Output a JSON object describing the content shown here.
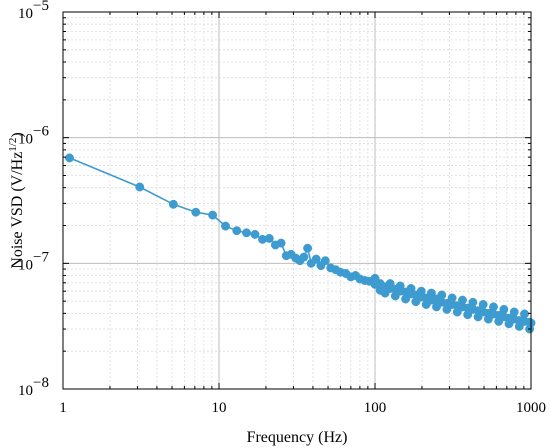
{
  "chart_data": {
    "type": "line",
    "title": "",
    "xlabel": "Frequency (Hz)",
    "ylabel_main": "Noise VSD (V/Hz",
    "ylabel_sup": "1/2",
    "ylabel_end": ")",
    "xscale": "log",
    "yscale": "log",
    "xlim": [
      1,
      1000
    ],
    "ylim": [
      1e-08,
      1e-05
    ],
    "grid": true,
    "legend": "none",
    "colors": {
      "series": "#3e9bd0",
      "major_grid": "#bdbdbd",
      "minor_grid": "#dcdcdc"
    },
    "x_ticks": [
      {
        "value": 1,
        "label": "1"
      },
      {
        "value": 10,
        "label": "10"
      },
      {
        "value": 100,
        "label": "100"
      },
      {
        "value": 1000,
        "label": "1000"
      }
    ],
    "y_ticks": [
      {
        "value": 1e-08,
        "base": "10",
        "exp": "−8"
      },
      {
        "value": 1e-07,
        "base": "10",
        "exp": "−7"
      },
      {
        "value": 1e-06,
        "base": "10",
        "exp": "−6"
      },
      {
        "value": 1e-05,
        "base": "10",
        "exp": "−5"
      }
    ],
    "series": [
      {
        "name": "",
        "x": [
          1.1,
          3.1,
          5.1,
          7.1,
          9.1,
          11,
          13,
          15,
          17,
          19,
          21,
          23,
          25,
          27,
          29,
          31,
          33,
          35,
          37,
          39,
          42,
          45,
          48,
          52,
          56,
          60,
          65,
          70,
          75,
          80,
          86,
          92,
          100,
          108,
          116,
          125,
          135,
          145,
          157,
          170,
          183,
          198,
          213,
          230,
          248,
          268,
          289,
          312,
          337,
          364,
          393,
          424,
          458,
          494,
          533,
          575,
          621,
          670,
          723,
          780,
          842,
          908,
          980,
          1000
        ],
        "y": [
          6.9e-07,
          4.05e-07,
          2.95e-07,
          2.55e-07,
          2.42e-07,
          1.98e-07,
          1.82e-07,
          1.75e-07,
          1.7e-07,
          1.55e-07,
          1.58e-07,
          1.4e-07,
          1.45e-07,
          1.15e-07,
          1.18e-07,
          1.1e-07,
          1.05e-07,
          1.12e-07,
          1.32e-07,
          1e-07,
          1.08e-07,
          9.6e-08,
          1.05e-07,
          9.2e-08,
          8.9e-08,
          8.5e-08,
          8.3e-08,
          7.8e-08,
          8e-08,
          7.5e-08,
          7.3e-08,
          7.2e-08,
          6.8e-08,
          6.9e-08,
          6.5e-08,
          6.3e-08,
          6.2e-08,
          6e-08,
          5.9e-08,
          5.7e-08,
          5.6e-08,
          5.4e-08,
          5.3e-08,
          5.1e-08,
          5.2e-08,
          4.9e-08,
          4.8e-08,
          4.7e-08,
          4.6e-08,
          4.5e-08,
          4.4e-08,
          4.3e-08,
          4.2e-08,
          4.1e-08,
          4e-08,
          3.95e-08,
          3.85e-08,
          3.75e-08,
          3.65e-08,
          3.6e-08,
          3.5e-08,
          3.45e-08,
          3.4e-08,
          3.35e-08
        ]
      },
      {
        "name": "",
        "x": [
          100,
          108,
          116,
          125,
          135,
          145,
          157,
          170,
          183,
          198,
          213,
          230,
          248,
          268,
          289,
          312,
          337,
          364,
          393,
          424,
          458,
          494,
          533,
          575,
          621,
          670,
          723,
          780,
          842,
          908,
          980
        ],
        "y": [
          7.6e-08,
          6.1e-08,
          5.8e-08,
          6.9e-08,
          5.5e-08,
          6.6e-08,
          5.2e-08,
          6.3e-08,
          4.95e-08,
          6e-08,
          4.7e-08,
          5.8e-08,
          4.5e-08,
          5.6e-08,
          4.3e-08,
          5.3e-08,
          4.1e-08,
          5.1e-08,
          3.9e-08,
          4.9e-08,
          3.75e-08,
          4.7e-08,
          3.6e-08,
          4.5e-08,
          3.45e-08,
          4.3e-08,
          3.3e-08,
          4.1e-08,
          3.15e-08,
          3.95e-08,
          3e-08
        ]
      }
    ]
  }
}
